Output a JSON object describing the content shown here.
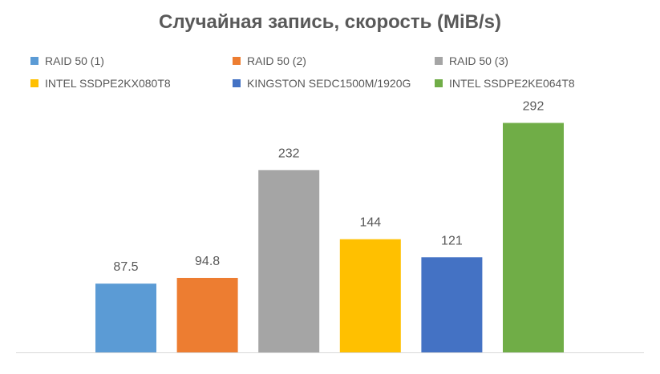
{
  "chart_data": {
    "type": "bar",
    "title": "Случайная запись, скорость (MiB/s)",
    "xlabel": "",
    "ylabel": "",
    "ylim": [
      0,
      320
    ],
    "grid": false,
    "legend_position": "top",
    "series": [
      {
        "name": "RAID 50 (1)",
        "value": 87.5,
        "label": "87.5",
        "color": "#5b9bd5"
      },
      {
        "name": "RAID 50 (2)",
        "value": 94.8,
        "label": "94.8",
        "color": "#ed7d31"
      },
      {
        "name": "RAID 50 (3)",
        "value": 232,
        "label": "232",
        "color": "#a5a5a5"
      },
      {
        "name": "INTEL SSDPE2KX080T8",
        "value": 144,
        "label": "144",
        "color": "#ffc000"
      },
      {
        "name": "KINGSTON SEDC1500M/1920G",
        "value": 121,
        "label": "121",
        "color": "#4472c4"
      },
      {
        "name": "INTEL SSDPE2KE064T8",
        "value": 292,
        "label": "292",
        "color": "#70ad47"
      }
    ]
  }
}
